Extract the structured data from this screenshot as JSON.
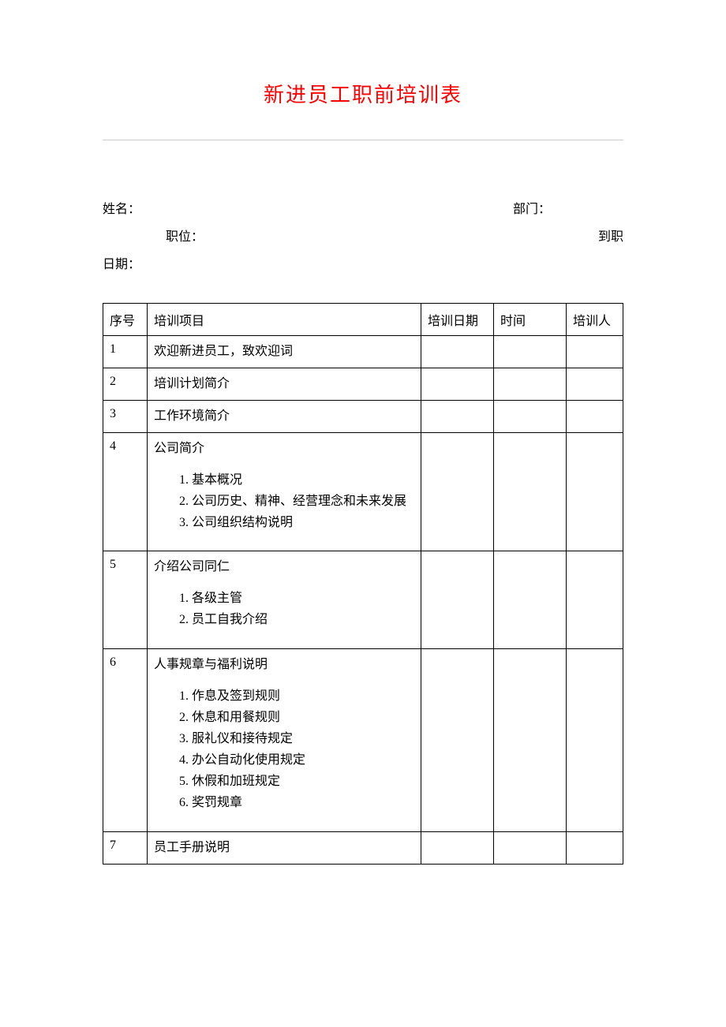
{
  "title": "新进员工职前培训表",
  "fields": {
    "name_label": "姓名：",
    "dept_label": "部门：",
    "position_label": "职位：",
    "arrival_label": "到职",
    "date_label": "日期："
  },
  "table": {
    "headers": {
      "seq": "序号",
      "item": "培训项目",
      "date": "培训日期",
      "time": "时间",
      "trainer": "培训人"
    },
    "rows": [
      {
        "seq": "1",
        "item": "欢迎新进员工，致欢迎词",
        "sub": []
      },
      {
        "seq": "2",
        "item": "培训计划简介",
        "sub": []
      },
      {
        "seq": "3",
        "item": "工作环境简介",
        "sub": []
      },
      {
        "seq": "4",
        "item": "公司简介",
        "sub": [
          "基本概况",
          "公司历史、精神、经营理念和未来发展",
          "公司组织结构说明"
        ]
      },
      {
        "seq": "5",
        "item": "介绍公司同仁",
        "sub": [
          "各级主管",
          "员工自我介绍"
        ]
      },
      {
        "seq": "6",
        "item": "人事规章与福利说明",
        "sub": [
          "作息及签到规则",
          "休息和用餐规则",
          "服礼仪和接待规定",
          "办公自动化使用规定",
          "休假和加班规定",
          "奖罚规章"
        ]
      },
      {
        "seq": "7",
        "item": "员工手册说明",
        "sub": []
      }
    ]
  },
  "style": {
    "title_color": "#ff0000",
    "border_color": "#000000",
    "hr_color": "#cccccc",
    "bg_color": "#ffffff",
    "text_color": "#000000",
    "title_fontsize": 26,
    "body_fontsize": 16
  }
}
